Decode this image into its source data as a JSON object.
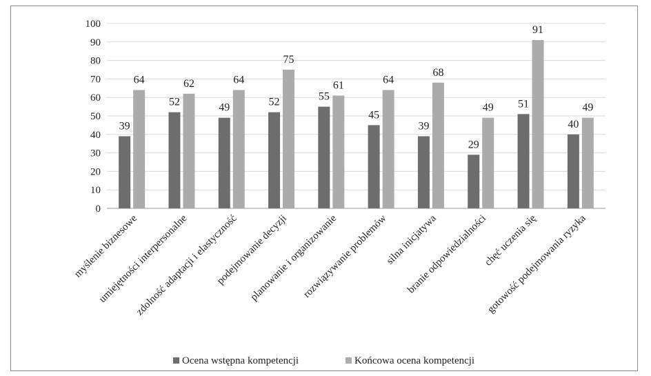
{
  "chart_data": {
    "type": "bar",
    "categories": [
      "myślenie biznesowe",
      "umiejętności interpersonalne",
      "zdolność adaptacji i elastyczność",
      "podejmowanie decyzji",
      "planowanie i organizowanie",
      "rozwiązywanie problemów",
      "silna inicjatywa",
      "branie odpowiedzialności",
      "chęć uczenia się",
      "gotowość podejmowania ryzyka"
    ],
    "series": [
      {
        "name": "Ocena wstępna kompetencji",
        "values": [
          39,
          52,
          49,
          52,
          55,
          45,
          39,
          29,
          51,
          40
        ],
        "color": "#6d6d6d"
      },
      {
        "name": "Końcowa ocena kompetencji",
        "values": [
          64,
          62,
          64,
          75,
          61,
          64,
          68,
          49,
          91,
          49
        ],
        "color": "#ababab"
      }
    ],
    "ylim": [
      0,
      100
    ],
    "yticks": [
      0,
      10,
      20,
      30,
      40,
      50,
      60,
      70,
      80,
      90,
      100
    ],
    "grid": true,
    "legend": "bottom",
    "xlabel": "",
    "ylabel": ""
  }
}
